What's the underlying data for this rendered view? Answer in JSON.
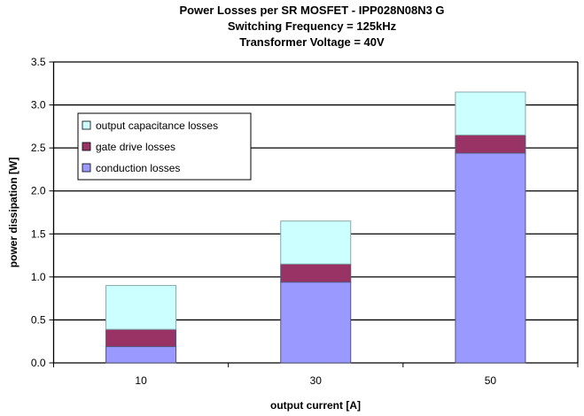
{
  "chart_data": {
    "type": "bar",
    "stacked": true,
    "title": [
      "Power Losses per SR MOSFET - IPP028N08N3 G",
      "Switching Frequency  = 125kHz",
      "Transformer Voltage = 40V"
    ],
    "xlabel": "output current [A]",
    "ylabel": "power dissipation [W]",
    "categories": [
      "10",
      "30",
      "50"
    ],
    "ylim": [
      0,
      3.5
    ],
    "yticks": [
      "0.0",
      "0.5",
      "1.0",
      "1.5",
      "2.0",
      "2.5",
      "3.0",
      "3.5"
    ],
    "grid": true,
    "legend_position": "top-left",
    "series": [
      {
        "name": "conduction losses",
        "values": [
          0.19,
          0.94,
          2.44
        ],
        "color": "#9999ff"
      },
      {
        "name": "gate drive losses",
        "values": [
          0.2,
          0.21,
          0.21
        ],
        "color": "#993366"
      },
      {
        "name": "output capacitance losses",
        "values": [
          0.51,
          0.5,
          0.5
        ],
        "color": "#ccffff"
      }
    ],
    "legend_order": [
      2,
      1,
      0
    ]
  }
}
